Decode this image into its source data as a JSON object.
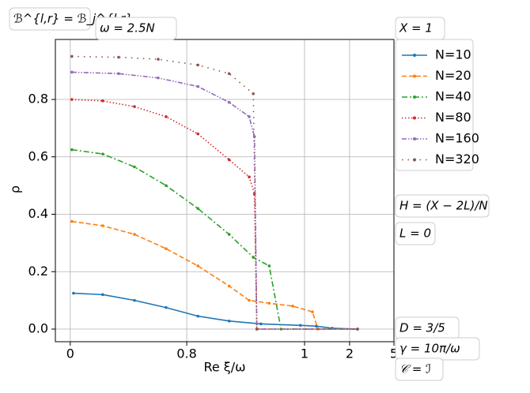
{
  "chart_data": {
    "type": "line",
    "ylabel": "ρ",
    "xlabel": "Re ξ/ω",
    "annotations": [
      "ℬ^{l,r} = ℬ_j^{l,r}",
      "ω = 2.5N",
      "X = 1",
      "H = (X − 2L)/N",
      "L = 0",
      "D = 3/5",
      "γ = 10π/ω",
      "𝒞 = ℐ"
    ],
    "xlim": [
      -0.1,
      5
    ],
    "xticks": [
      0,
      0.8,
      1,
      2,
      5
    ],
    "ylim": [
      -0.044,
      1.009
    ],
    "yticks": [
      {
        "value": 0,
        "label": "0.0"
      },
      0.2,
      0.4,
      0.6,
      0.8
    ],
    "grid": true,
    "legend": "outside-upper-right",
    "series": [
      {
        "name": "N=10",
        "color": "#1f77b4",
        "linestyle": "solid",
        "x": [
          0.022,
          0.223,
          0.441,
          0.658,
          0.819,
          0.872,
          0.926,
          0.993,
          1.263,
          1.614,
          2.536
        ],
        "values": [
          0.125,
          0.12,
          0.1,
          0.075,
          0.045,
          0.028,
          0.018,
          0.013,
          0.01,
          0.003,
          0.0
        ]
      },
      {
        "name": "N=20",
        "color": "#ff7f0e",
        "linestyle": "dashed",
        "x": [
          0.011,
          0.223,
          0.441,
          0.658,
          0.819,
          0.872,
          0.906,
          0.94,
          0.98,
          1.175,
          1.298,
          2.536
        ],
        "values": [
          0.375,
          0.36,
          0.33,
          0.28,
          0.22,
          0.15,
          0.1,
          0.09,
          0.08,
          0.06,
          0.0,
          0.0
        ]
      },
      {
        "name": "N=40",
        "color": "#2ca02c",
        "linestyle": "dashdot",
        "x": [
          0.011,
          0.223,
          0.441,
          0.658,
          0.819,
          0.872,
          0.913,
          0.94,
          0.96,
          2.536
        ],
        "values": [
          0.625,
          0.61,
          0.565,
          0.5,
          0.42,
          0.33,
          0.25,
          0.22,
          0.0,
          0.0
        ]
      },
      {
        "name": "N=80",
        "color": "#d62728",
        "linestyle": "dotted",
        "x": [
          0.011,
          0.223,
          0.441,
          0.658,
          0.819,
          0.872,
          0.906,
          0.915,
          0.919,
          2.536
        ],
        "values": [
          0.8,
          0.795,
          0.775,
          0.74,
          0.68,
          0.59,
          0.53,
          0.47,
          0.0,
          0.0
        ]
      },
      {
        "name": "N=160",
        "color": "#9467bd",
        "linestyle": "dashdotdot",
        "x": [
          0.011,
          0.332,
          0.604,
          0.819,
          0.872,
          0.906,
          0.915,
          0.919,
          2.536
        ],
        "values": [
          0.895,
          0.89,
          0.875,
          0.845,
          0.79,
          0.74,
          0.67,
          0.0,
          0.0
        ]
      },
      {
        "name": "N=320",
        "color": "#8c564b",
        "linestyle": "loosedot",
        "x": [
          0.011,
          0.332,
          0.604,
          0.819,
          0.872,
          0.913,
          0.919,
          2.536
        ],
        "values": [
          0.95,
          0.947,
          0.94,
          0.92,
          0.89,
          0.82,
          0.0,
          0.0
        ]
      }
    ]
  }
}
